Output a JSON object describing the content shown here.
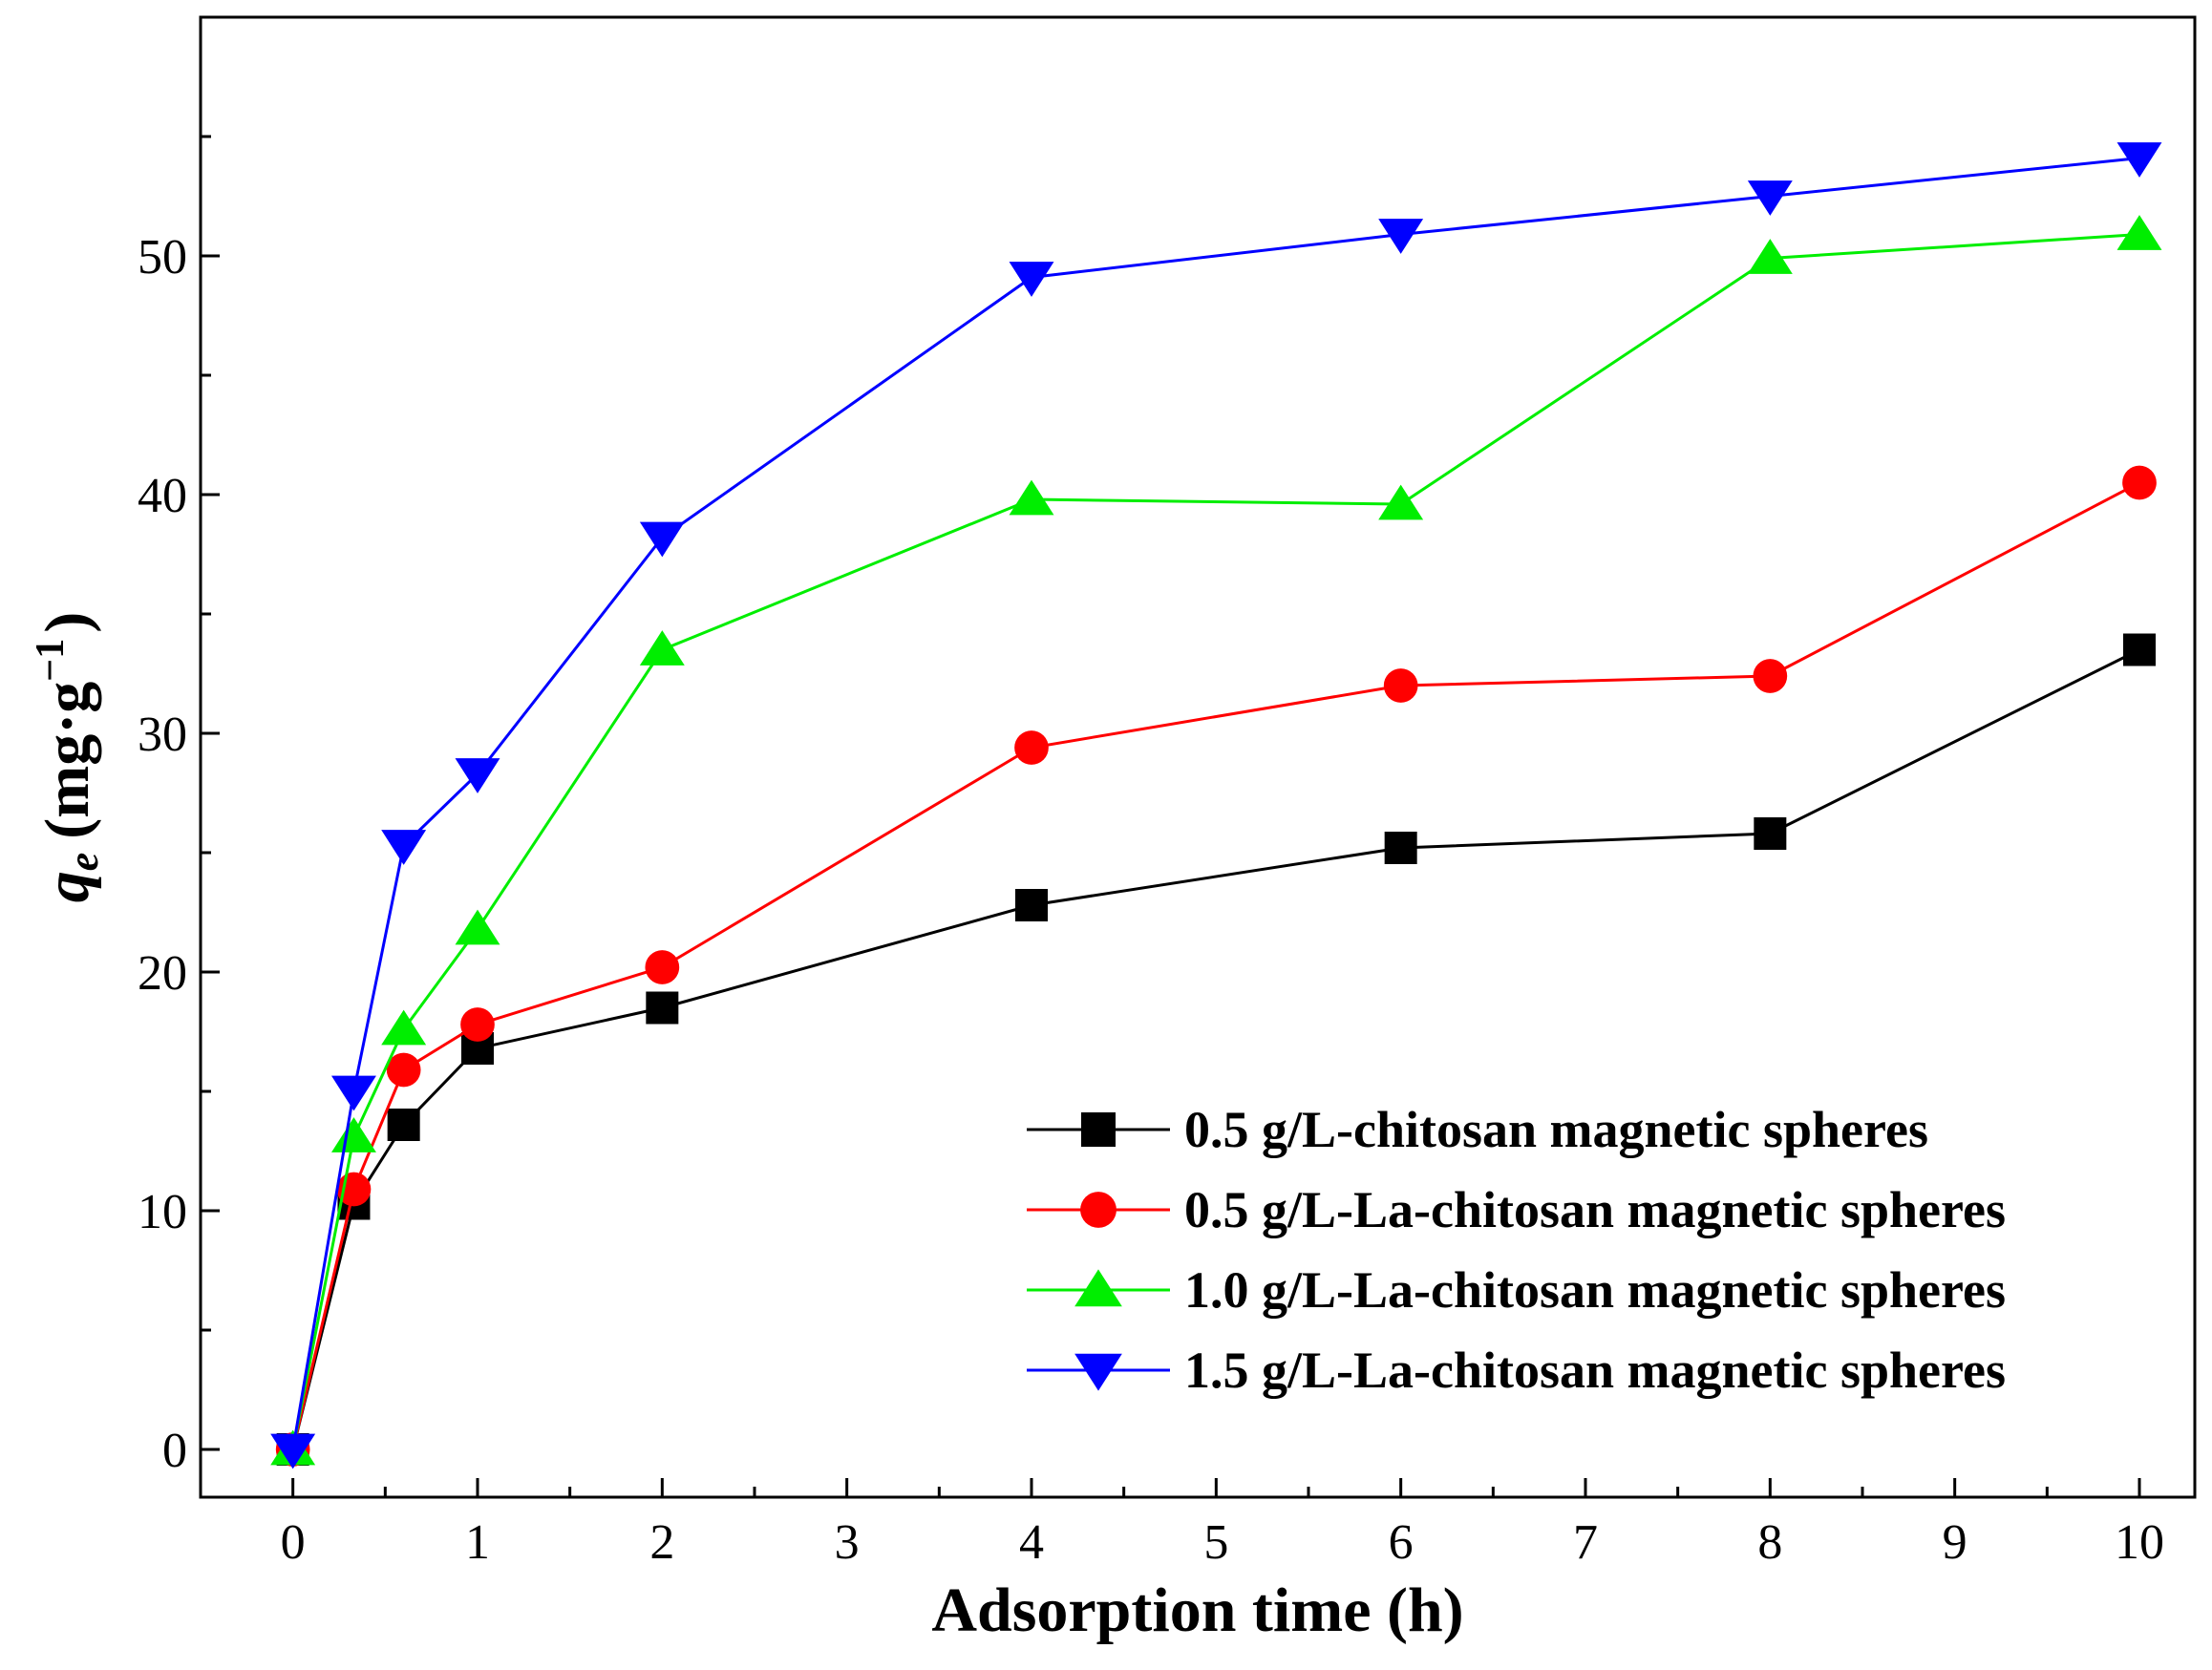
{
  "chart_data": {
    "type": "line",
    "title": "",
    "xlabel": "Adsorption time (h)",
    "ylabel": {
      "symbol": "q",
      "subscript": "e",
      "units": "(mg·g",
      "superscript": "−1",
      "close": ")"
    },
    "xlim": [
      -0.5,
      10.3
    ],
    "ylim": [
      -2,
      60
    ],
    "x_ticks": [
      0,
      1,
      2,
      3,
      4,
      5,
      6,
      7,
      8,
      9,
      10
    ],
    "x_tick_labels": [
      "0",
      "1",
      "2",
      "3",
      "4",
      "5",
      "6",
      "7",
      "8",
      "9",
      "10"
    ],
    "y_ticks": [
      0,
      10,
      20,
      30,
      40,
      50
    ],
    "y_tick_labels": [
      "0",
      "10",
      "20",
      "30",
      "40",
      "50"
    ],
    "grid": false,
    "legend_position": "bottom-right",
    "x": [
      0,
      0.33,
      0.6,
      1,
      2,
      4,
      6,
      8,
      10
    ],
    "series": [
      {
        "name": "0.5 g/L-chitosan magnetic spheres",
        "color": "#000000",
        "marker": "square",
        "values": [
          0,
          10.3,
          13.6,
          16.8,
          18.5,
          22.8,
          25.2,
          25.8,
          33.5
        ]
      },
      {
        "name": "0.5 g/L-La-chitosan magnetic spheres",
        "color": "#ff0000",
        "marker": "circle",
        "values": [
          0,
          10.9,
          15.9,
          17.8,
          20.2,
          29.4,
          32.0,
          32.4,
          40.5
        ]
      },
      {
        "name": "1.0 g/L-La-chitosan magnetic spheres",
        "color": "#00ee00",
        "marker": "triangle-up",
        "values": [
          0,
          13.1,
          17.6,
          21.8,
          33.5,
          39.8,
          39.6,
          49.9,
          50.9
        ]
      },
      {
        "name": "1.5 g/L-La-chitosan magnetic spheres",
        "color": "#0000ff",
        "marker": "triangle-down",
        "values": [
          0,
          15.0,
          25.3,
          28.3,
          38.2,
          49.1,
          50.9,
          52.5,
          54.1
        ]
      }
    ]
  }
}
